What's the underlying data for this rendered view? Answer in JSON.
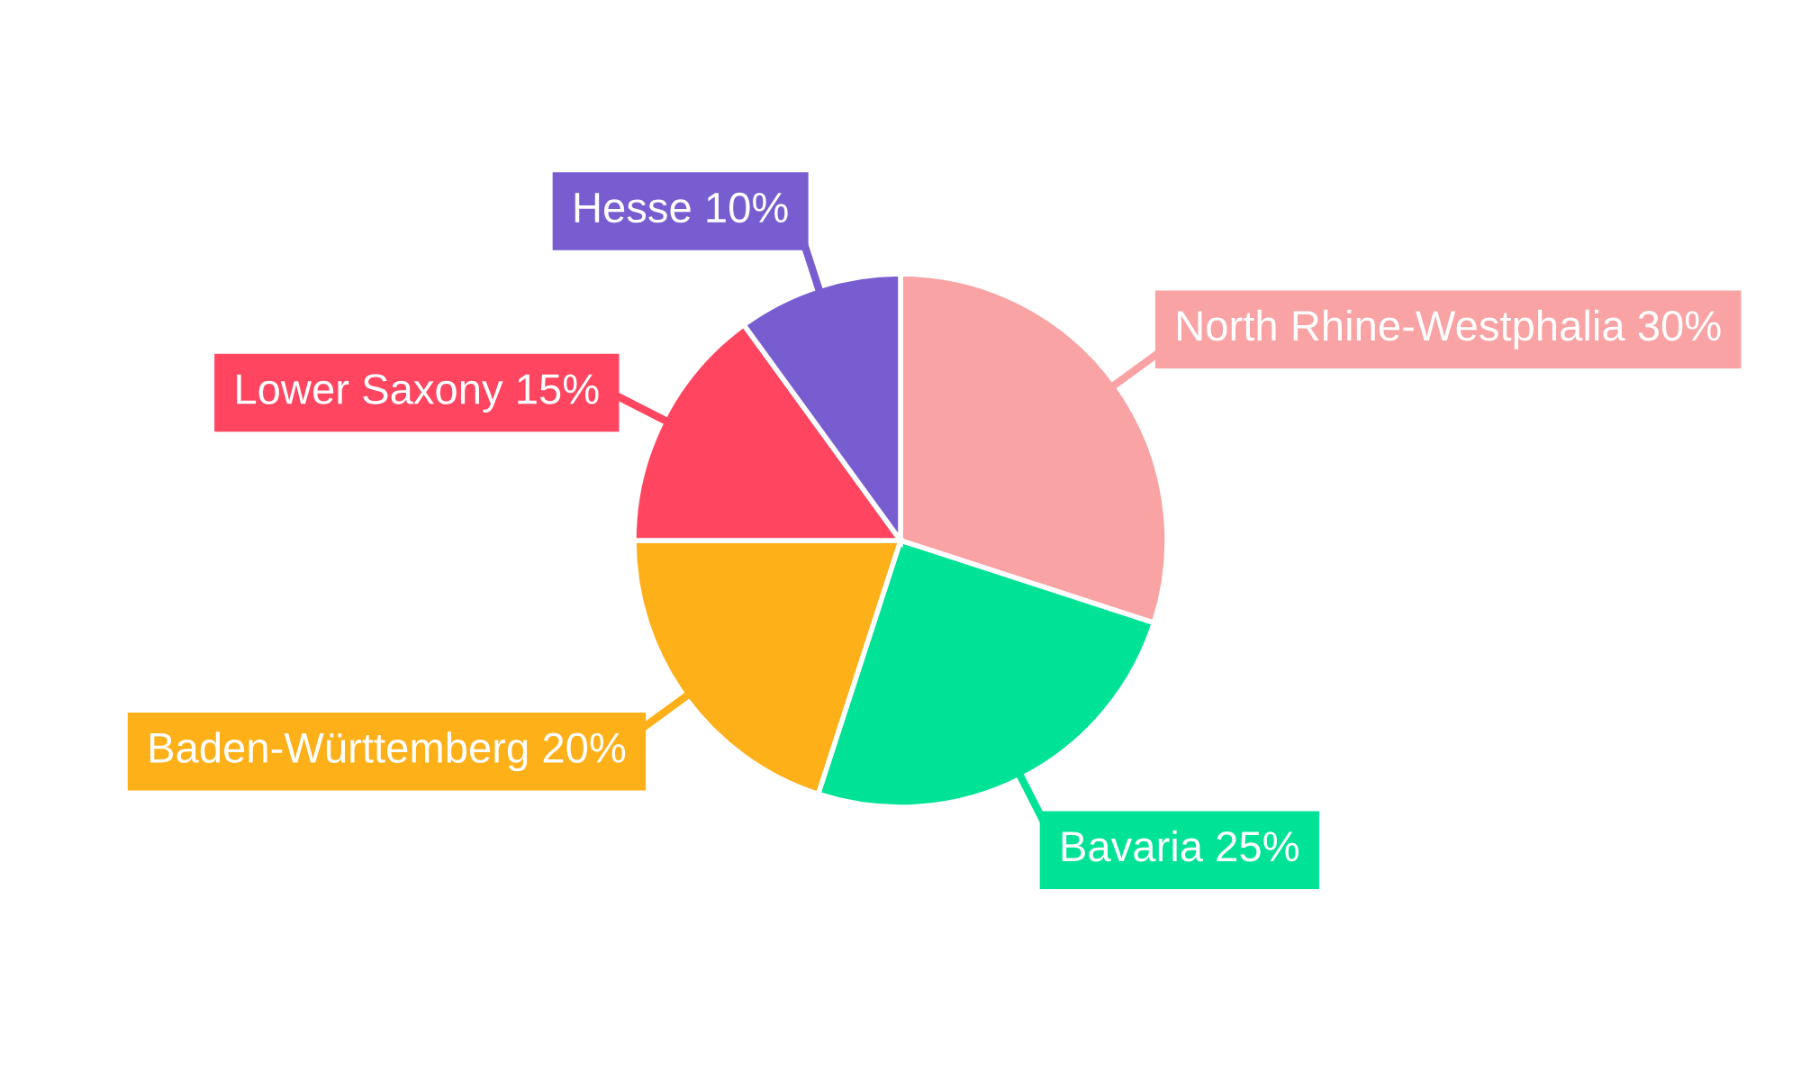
{
  "chart_data": {
    "type": "pie",
    "categories": [
      "North Rhine-Westphalia",
      "Bavaria",
      "Baden-Württemberg",
      "Lower Saxony",
      "Hesse"
    ],
    "values": [
      30,
      25,
      20,
      15,
      10
    ],
    "value_labels": [
      "30%",
      "25%",
      "20%",
      "15%",
      "10%"
    ],
    "colors": [
      "#f9a3a4",
      "#00e396",
      "#feb019",
      "#ff4560",
      "#775dd0"
    ],
    "legend": false
  }
}
